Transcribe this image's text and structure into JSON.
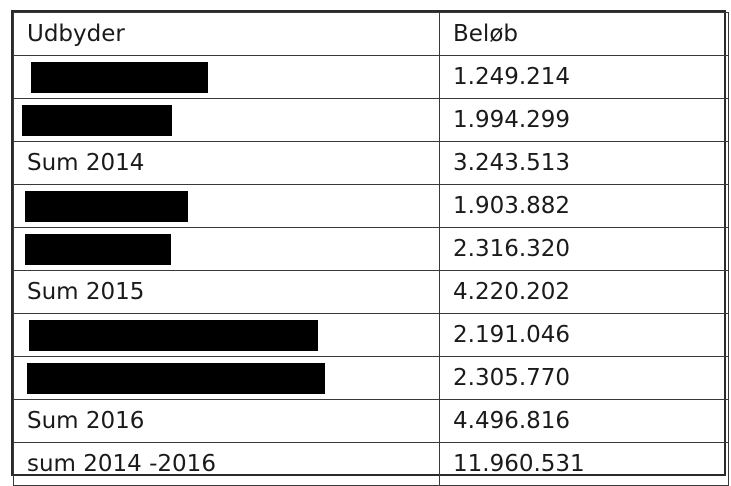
{
  "table": {
    "headers": [
      "Udbyder",
      "Beløb"
    ],
    "rows": [
      {
        "label": "",
        "redacted": true,
        "amount": "1.249.214"
      },
      {
        "label": "",
        "redacted": true,
        "amount": "1.994.299"
      },
      {
        "label": "Sum 2014",
        "redacted": false,
        "amount": "3.243.513"
      },
      {
        "label": "",
        "redacted": true,
        "amount": "1.903.882"
      },
      {
        "label": "",
        "redacted": true,
        "amount": "2.316.320"
      },
      {
        "label": "Sum 2015",
        "redacted": false,
        "amount": "4.220.202"
      },
      {
        "label": "",
        "redacted": true,
        "amount": "2.191.046"
      },
      {
        "label": "",
        "redacted": true,
        "amount": "2.305.770"
      },
      {
        "label": "Sum 2016",
        "redacted": false,
        "amount": "4.496.816"
      },
      {
        "label": "sum 2014 -2016",
        "redacted": false,
        "amount": "11.960.531"
      }
    ]
  }
}
